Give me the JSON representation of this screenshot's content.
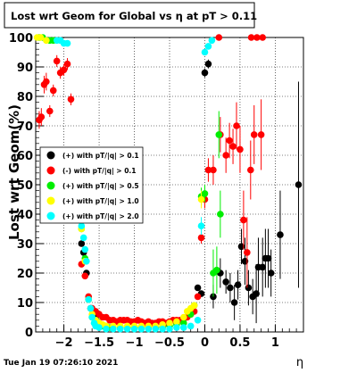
{
  "chart_data": {
    "type": "scatter",
    "title": "Lost wrt Geom for Global vs  η at pT > 0.11",
    "xlabel": "η",
    "ylabel": "Lost wrt Geom(%)",
    "xlim": [
      -2.4,
      1.4
    ],
    "ylim": [
      0,
      100
    ],
    "x_ticks": [
      -2,
      -1.5,
      -1,
      -0.5,
      0,
      0.5,
      1
    ],
    "y_ticks": [
      0,
      10,
      20,
      30,
      40,
      50,
      60,
      70,
      80,
      90,
      100
    ],
    "grid": true,
    "legend_position": "left-middle",
    "footer_text": "Tue Jan 19 07:26:10 2021",
    "series": [
      {
        "name": "(+) with pT/|q| > 0.1",
        "color": "#000000",
        "points": [
          [
            -1.75,
            30,
            0.6
          ],
          [
            -1.72,
            27,
            0.6
          ],
          [
            -1.68,
            20,
            0.6
          ],
          [
            -1.65,
            11,
            0.6
          ],
          [
            -1.62,
            8,
            0.6
          ],
          [
            -1.58,
            6,
            0.5
          ],
          [
            -1.55,
            5,
            0.5
          ],
          [
            -0.1,
            15,
            1
          ],
          [
            -0.05,
            13,
            1
          ],
          [
            0.0,
            88,
            1.5
          ],
          [
            0.05,
            91,
            1.5
          ],
          [
            0.12,
            12,
            4
          ],
          [
            0.22,
            20,
            5
          ],
          [
            0.3,
            17,
            4
          ],
          [
            0.36,
            15,
            5
          ],
          [
            0.42,
            10,
            6
          ],
          [
            0.47,
            16,
            5
          ],
          [
            0.52,
            29,
            6
          ],
          [
            0.57,
            24,
            8
          ],
          [
            0.62,
            15,
            6
          ],
          [
            0.68,
            12,
            6
          ],
          [
            0.73,
            13,
            10
          ],
          [
            0.76,
            22,
            10
          ],
          [
            0.82,
            22,
            10
          ],
          [
            0.86,
            25,
            10
          ],
          [
            0.9,
            25,
            10
          ],
          [
            0.94,
            20,
            8
          ],
          [
            1.07,
            33,
            15
          ],
          [
            1.33,
            50,
            35
          ]
        ]
      },
      {
        "name": "(-) with pT/|q| > 0.1",
        "color": "#ff0000",
        "points": [
          [
            -2.35,
            72,
            3
          ],
          [
            -2.32,
            73,
            3
          ],
          [
            -2.28,
            84,
            3
          ],
          [
            -2.25,
            85,
            3
          ],
          [
            -2.2,
            75,
            2
          ],
          [
            -2.15,
            82,
            2
          ],
          [
            -2.1,
            92,
            2
          ],
          [
            -2.05,
            88,
            2
          ],
          [
            -2.0,
            89,
            2
          ],
          [
            -1.95,
            91,
            2
          ],
          [
            -1.9,
            79,
            2
          ],
          [
            -1.75,
            23,
            0.8
          ],
          [
            -1.7,
            19,
            0.8
          ],
          [
            -1.65,
            12,
            0.5
          ],
          [
            -1.6,
            8,
            0.5
          ],
          [
            -1.55,
            7,
            0.5
          ],
          [
            -1.5,
            6,
            0.5
          ],
          [
            -1.45,
            5,
            0.5
          ],
          [
            -1.4,
            5,
            0.5
          ],
          [
            -1.35,
            4,
            0.5
          ],
          [
            -1.3,
            4,
            0.5
          ],
          [
            -1.25,
            3.5,
            0.5
          ],
          [
            -1.2,
            4,
            0.5
          ],
          [
            -1.15,
            4,
            0.5
          ],
          [
            -1.1,
            4,
            0.5
          ],
          [
            -1.05,
            3.5,
            0.5
          ],
          [
            -1.0,
            3.5,
            0.5
          ],
          [
            -0.95,
            4,
            0.5
          ],
          [
            -0.9,
            3.5,
            0.5
          ],
          [
            -0.85,
            3,
            0.5
          ],
          [
            -0.8,
            3.5,
            0.5
          ],
          [
            -0.75,
            3,
            0.5
          ],
          [
            -0.7,
            3,
            0.5
          ],
          [
            -0.65,
            3.5,
            0.5
          ],
          [
            -0.6,
            3.5,
            0.5
          ],
          [
            -0.55,
            3,
            0.5
          ],
          [
            -0.5,
            3.5,
            0.5
          ],
          [
            -0.45,
            4,
            0.5
          ],
          [
            -0.4,
            4,
            0.5
          ],
          [
            -0.35,
            4,
            0.5
          ],
          [
            -0.3,
            4.5,
            0.5
          ],
          [
            -0.25,
            5,
            0.5
          ],
          [
            -0.2,
            6,
            0.6
          ],
          [
            -0.15,
            7,
            0.8
          ],
          [
            -0.1,
            12,
            1
          ],
          [
            -0.05,
            32,
            2
          ],
          [
            0.0,
            45,
            3
          ],
          [
            0.05,
            55,
            4
          ],
          [
            0.12,
            55,
            5
          ],
          [
            0.22,
            67,
            6
          ],
          [
            0.3,
            60,
            6
          ],
          [
            0.35,
            65,
            6
          ],
          [
            0.4,
            63,
            6
          ],
          [
            0.45,
            70,
            8
          ],
          [
            0.5,
            62,
            8
          ],
          [
            0.55,
            38,
            10
          ],
          [
            0.6,
            27,
            12
          ],
          [
            0.65,
            55,
            10
          ],
          [
            0.7,
            67,
            10
          ],
          [
            0.8,
            67,
            12
          ],
          [
            0.2,
            100,
            0.5
          ],
          [
            0.66,
            100,
            0.5
          ],
          [
            0.74,
            100,
            0.5
          ],
          [
            0.82,
            100,
            0.5
          ]
        ]
      },
      {
        "name": "(+) with pT/|q| > 0.5",
        "color": "#00ee00",
        "points": [
          [
            -2.35,
            100,
            0.5
          ],
          [
            -2.3,
            100,
            0.5
          ],
          [
            -2.2,
            99,
            0.5
          ],
          [
            -2.15,
            99,
            0.5
          ],
          [
            -1.75,
            35,
            1
          ],
          [
            -1.7,
            25,
            1
          ],
          [
            -1.65,
            11,
            0.5
          ],
          [
            -1.6,
            5,
            0.5
          ],
          [
            -1.55,
            4,
            0.5
          ],
          [
            -1.5,
            3,
            0.5
          ],
          [
            -1.45,
            2,
            0.5
          ],
          [
            -1.4,
            2,
            0.5
          ],
          [
            -1.35,
            1.5,
            0.5
          ],
          [
            -1.3,
            1.5,
            0.5
          ],
          [
            -1.2,
            1.5,
            0.5
          ],
          [
            -1.1,
            1.5,
            0.5
          ],
          [
            -1.0,
            1.5,
            0.5
          ],
          [
            -0.9,
            1.5,
            0.5
          ],
          [
            -0.8,
            1.5,
            0.5
          ],
          [
            -0.7,
            1.5,
            0.5
          ],
          [
            -0.6,
            1.5,
            0.5
          ],
          [
            -0.5,
            2,
            0.5
          ],
          [
            -0.4,
            2.5,
            0.5
          ],
          [
            -0.3,
            3,
            0.5
          ],
          [
            -0.2,
            6,
            0.6
          ],
          [
            -0.15,
            9,
            0.8
          ],
          [
            -0.05,
            46,
            3
          ],
          [
            0.0,
            47,
            3
          ],
          [
            0.12,
            20,
            8
          ],
          [
            0.17,
            21,
            8
          ],
          [
            0.22,
            40,
            8
          ],
          [
            0.2,
            67,
            8
          ]
        ]
      },
      {
        "name": "(+) with pT/|q| > 1.0",
        "color": "#ffff00",
        "points": [
          [
            -2.38,
            100,
            0.5
          ],
          [
            -2.33,
            100,
            0.5
          ],
          [
            -2.25,
            99,
            0.5
          ],
          [
            -1.75,
            35,
            1
          ],
          [
            -1.7,
            24,
            1
          ],
          [
            -1.65,
            11,
            0.5
          ],
          [
            -1.6,
            6,
            0.5
          ],
          [
            -1.55,
            4,
            0.5
          ],
          [
            -1.5,
            3,
            0.5
          ],
          [
            -1.45,
            2.5,
            0.5
          ],
          [
            -1.4,
            2,
            0.5
          ],
          [
            -1.3,
            2,
            0.5
          ],
          [
            -1.2,
            2,
            0.5
          ],
          [
            -1.1,
            2,
            0.5
          ],
          [
            -1.0,
            2,
            0.5
          ],
          [
            -0.9,
            2,
            0.5
          ],
          [
            -0.8,
            2,
            0.5
          ],
          [
            -0.7,
            2,
            0.5
          ],
          [
            -0.6,
            2.5,
            0.5
          ],
          [
            -0.5,
            3,
            0.5
          ],
          [
            -0.4,
            3.5,
            0.5
          ],
          [
            -0.3,
            5,
            0.5
          ],
          [
            -0.25,
            7,
            0.6
          ],
          [
            -0.2,
            8,
            0.6
          ],
          [
            -0.15,
            9,
            0.8
          ],
          [
            -0.05,
            45,
            3
          ]
        ]
      },
      {
        "name": "(+) with pT/|q| > 2.0",
        "color": "#00ffff",
        "points": [
          [
            -2.1,
            99,
            0.5
          ],
          [
            -2.05,
            99,
            0.5
          ],
          [
            -2.0,
            98,
            0.5
          ],
          [
            -1.95,
            98,
            0.5
          ],
          [
            -1.75,
            36,
            1
          ],
          [
            -1.72,
            32,
            1
          ],
          [
            -1.7,
            28,
            1
          ],
          [
            -1.68,
            24,
            1
          ],
          [
            -1.65,
            11,
            0.5
          ],
          [
            -1.62,
            8,
            0.5
          ],
          [
            -1.6,
            5,
            0.5
          ],
          [
            -1.57,
            3,
            0.5
          ],
          [
            -1.55,
            2,
            0.5
          ],
          [
            -1.5,
            1.5,
            0.5
          ],
          [
            -1.4,
            1,
            0.5
          ],
          [
            -1.3,
            1,
            0.5
          ],
          [
            -1.2,
            1,
            0.5
          ],
          [
            -1.1,
            1,
            0.5
          ],
          [
            -1.0,
            1,
            0.5
          ],
          [
            -0.9,
            1,
            0.5
          ],
          [
            -0.8,
            1,
            0.5
          ],
          [
            -0.7,
            1,
            0.5
          ],
          [
            -0.6,
            1,
            0.5
          ],
          [
            -0.5,
            1,
            0.5
          ],
          [
            -0.4,
            1.5,
            0.5
          ],
          [
            -0.3,
            1.5,
            0.5
          ],
          [
            -0.2,
            2,
            0.5
          ],
          [
            -0.1,
            4,
            0.5
          ],
          [
            -0.05,
            36,
            3
          ],
          [
            0.0,
            95,
            1
          ],
          [
            0.05,
            97,
            1
          ],
          [
            0.1,
            99,
            1
          ]
        ]
      }
    ]
  }
}
